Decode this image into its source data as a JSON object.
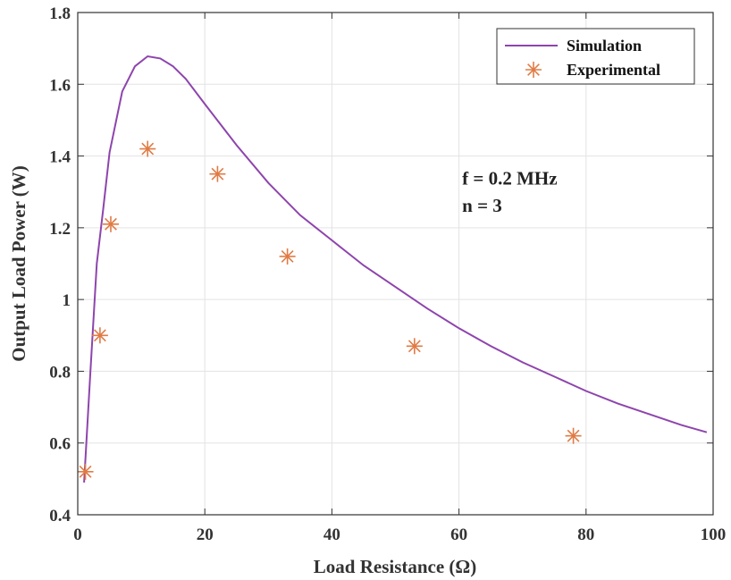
{
  "chart_data": {
    "type": "line",
    "title": "",
    "xlabel": "Load Resistance (Ω)",
    "ylabel": "Output Load Power (W)",
    "xlim": [
      0,
      100
    ],
    "ylim": [
      0.4,
      1.8
    ],
    "xticks": [
      0,
      20,
      40,
      60,
      80,
      100
    ],
    "yticks": [
      0.4,
      0.6,
      0.8,
      1.0,
      1.2,
      1.4,
      1.6,
      1.8
    ],
    "xtick_labels": [
      "0",
      "20",
      "40",
      "60",
      "80",
      "100"
    ],
    "ytick_labels": [
      "0.4",
      "0.6",
      "0.8",
      "1",
      "1.2",
      "1.4",
      "1.6",
      "1.8"
    ],
    "grid": true,
    "legend_position": "top-right",
    "series": [
      {
        "name": "Simulation",
        "kind": "line",
        "color": "#8E44AD",
        "x": [
          1,
          2,
          3,
          4,
          5,
          7,
          9,
          11,
          13,
          15,
          17,
          20,
          25,
          30,
          35,
          40,
          45,
          50,
          55,
          60,
          65,
          70,
          75,
          80,
          85,
          90,
          95,
          99
        ],
        "y": [
          0.49,
          0.8,
          1.1,
          1.25,
          1.41,
          1.58,
          1.65,
          1.678,
          1.672,
          1.65,
          1.615,
          1.545,
          1.43,
          1.325,
          1.235,
          1.165,
          1.095,
          1.035,
          0.975,
          0.92,
          0.87,
          0.825,
          0.785,
          0.745,
          0.71,
          0.68,
          0.65,
          0.63
        ]
      },
      {
        "name": "Experimental",
        "kind": "scatter",
        "marker": "asterisk",
        "color": "#E07B45",
        "x": [
          1.2,
          3.5,
          5.2,
          11,
          22,
          33,
          53,
          78
        ],
        "y": [
          0.52,
          0.9,
          1.21,
          1.42,
          1.35,
          1.12,
          0.87,
          0.62
        ]
      }
    ],
    "annotations": [
      {
        "text": "f = 0.2 MHz",
        "x": 60.5,
        "y": 1.32
      },
      {
        "text": "n = 3",
        "x": 60.5,
        "y": 1.245
      }
    ]
  }
}
